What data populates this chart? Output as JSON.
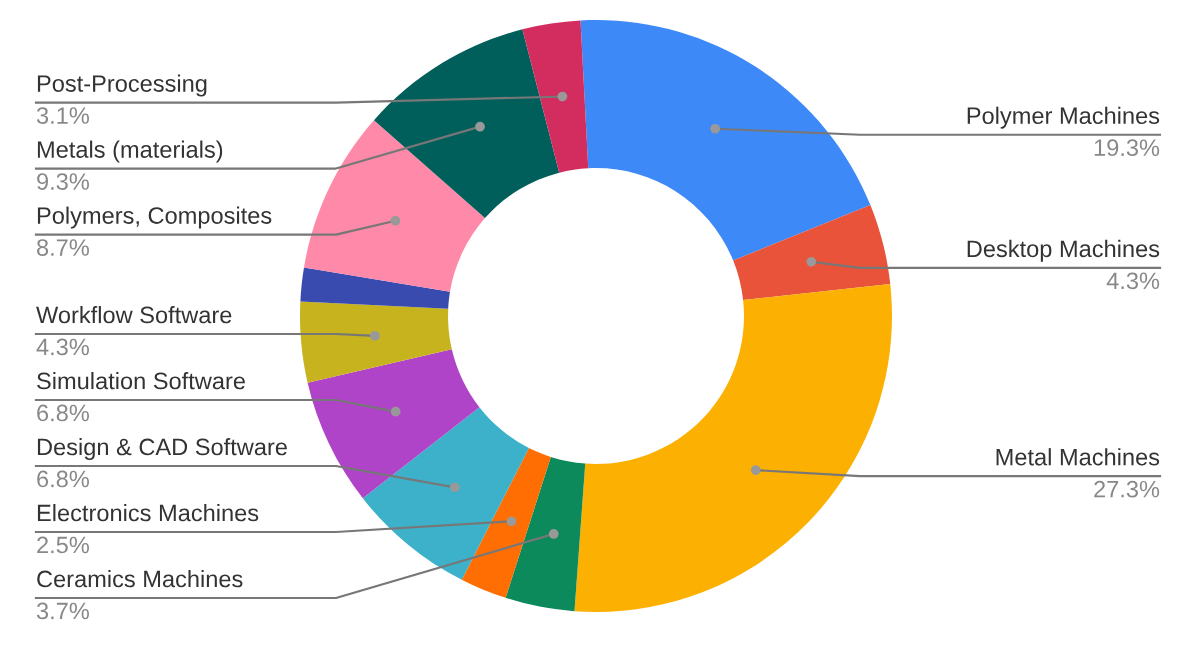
{
  "chart_data": {
    "type": "donut",
    "categories": [
      "Polymer Machines",
      "Desktop Machines",
      "Metal Machines",
      "Ceramics Machines",
      "Electronics Machines",
      "Design & CAD Software",
      "Simulation Software",
      "Workflow Software",
      null,
      "Polymers, Composites",
      "Metals (materials)",
      "Post-Processing"
    ],
    "values": [
      19.3,
      4.3,
      27.3,
      3.7,
      2.5,
      6.8,
      6.8,
      4.3,
      1.8,
      8.7,
      9.3,
      3.1
    ],
    "value_labels": [
      "19.3%",
      "4.3%",
      "27.3%",
      "3.7%",
      "2.5%",
      "6.8%",
      "6.8%",
      "4.3%",
      null,
      "8.7%",
      "9.3%",
      "3.1%"
    ],
    "colors": [
      "#3d89f8",
      "#e8533a",
      "#fcb001",
      "#0c8a5b",
      "#fe6e02",
      "#3cb1c9",
      "#b044c8",
      "#c6b31d",
      "#3a4bb0",
      "#ff89a8",
      "#005f5b",
      "#d32c5f"
    ],
    "legend": false
  }
}
